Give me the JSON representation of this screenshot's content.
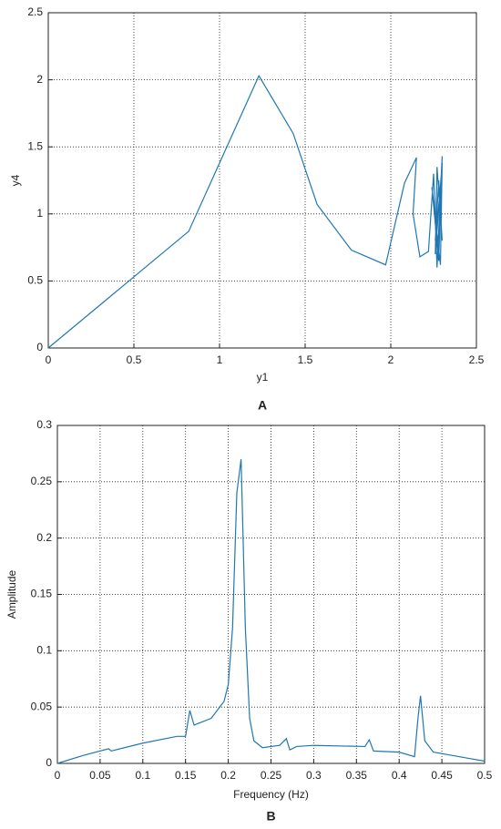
{
  "chart_data": [
    {
      "type": "line",
      "caption": "A",
      "xlabel": "y1",
      "ylabel": "y4",
      "color": "#1f77b4",
      "x": [
        0,
        0.82,
        1.23,
        1.43,
        1.57,
        1.77,
        1.97,
        2.08,
        2.15,
        2.13,
        2.17,
        2.22,
        2.25,
        2.27,
        2.3,
        2.28,
        2.24,
        2.29,
        2.3,
        2.26,
        2.27,
        2.3,
        2.28,
        2.26,
        2.29
      ],
      "values": [
        0,
        0.87,
        2.03,
        1.6,
        1.07,
        0.73,
        0.62,
        1.23,
        1.42,
        1.0,
        0.68,
        0.72,
        1.3,
        0.6,
        1.43,
        0.65,
        1.2,
        0.62,
        1.38,
        0.7,
        1.35,
        0.8,
        1.25,
        0.8,
        1.2
      ],
      "xlim": [
        0,
        2.5
      ],
      "ylim": [
        0,
        2.5
      ],
      "xticks": [
        0,
        0.5,
        1,
        1.5,
        2,
        2.5
      ],
      "yticks": [
        0,
        0.5,
        1,
        1.5,
        2,
        2.5
      ],
      "grid": true
    },
    {
      "type": "line",
      "caption": "B",
      "xlabel": "Frequency (Hz)",
      "ylabel": "Amplitude",
      "color": "#1f77b4",
      "x": [
        0,
        0.03,
        0.06,
        0.063,
        0.1,
        0.14,
        0.15,
        0.155,
        0.16,
        0.18,
        0.195,
        0.2,
        0.205,
        0.21,
        0.215,
        0.22,
        0.225,
        0.23,
        0.24,
        0.26,
        0.268,
        0.272,
        0.28,
        0.3,
        0.36,
        0.365,
        0.37,
        0.4,
        0.418,
        0.422,
        0.425,
        0.43,
        0.44,
        0.47,
        0.5
      ],
      "values": [
        0,
        0.007,
        0.013,
        0.011,
        0.018,
        0.024,
        0.024,
        0.047,
        0.034,
        0.04,
        0.055,
        0.07,
        0.12,
        0.24,
        0.27,
        0.12,
        0.04,
        0.02,
        0.014,
        0.016,
        0.022,
        0.012,
        0.015,
        0.016,
        0.015,
        0.021,
        0.011,
        0.01,
        0.006,
        0.04,
        0.06,
        0.02,
        0.01,
        0.006,
        0.002
      ],
      "xlim": [
        0,
        0.5
      ],
      "ylim": [
        0,
        0.3
      ],
      "xticks": [
        0,
        0.05,
        0.1,
        0.15,
        0.2,
        0.25,
        0.3,
        0.35,
        0.4,
        0.45,
        0.5
      ],
      "yticks": [
        0,
        0.05,
        0.1,
        0.15,
        0.2,
        0.25,
        0.3
      ],
      "grid": true
    }
  ]
}
